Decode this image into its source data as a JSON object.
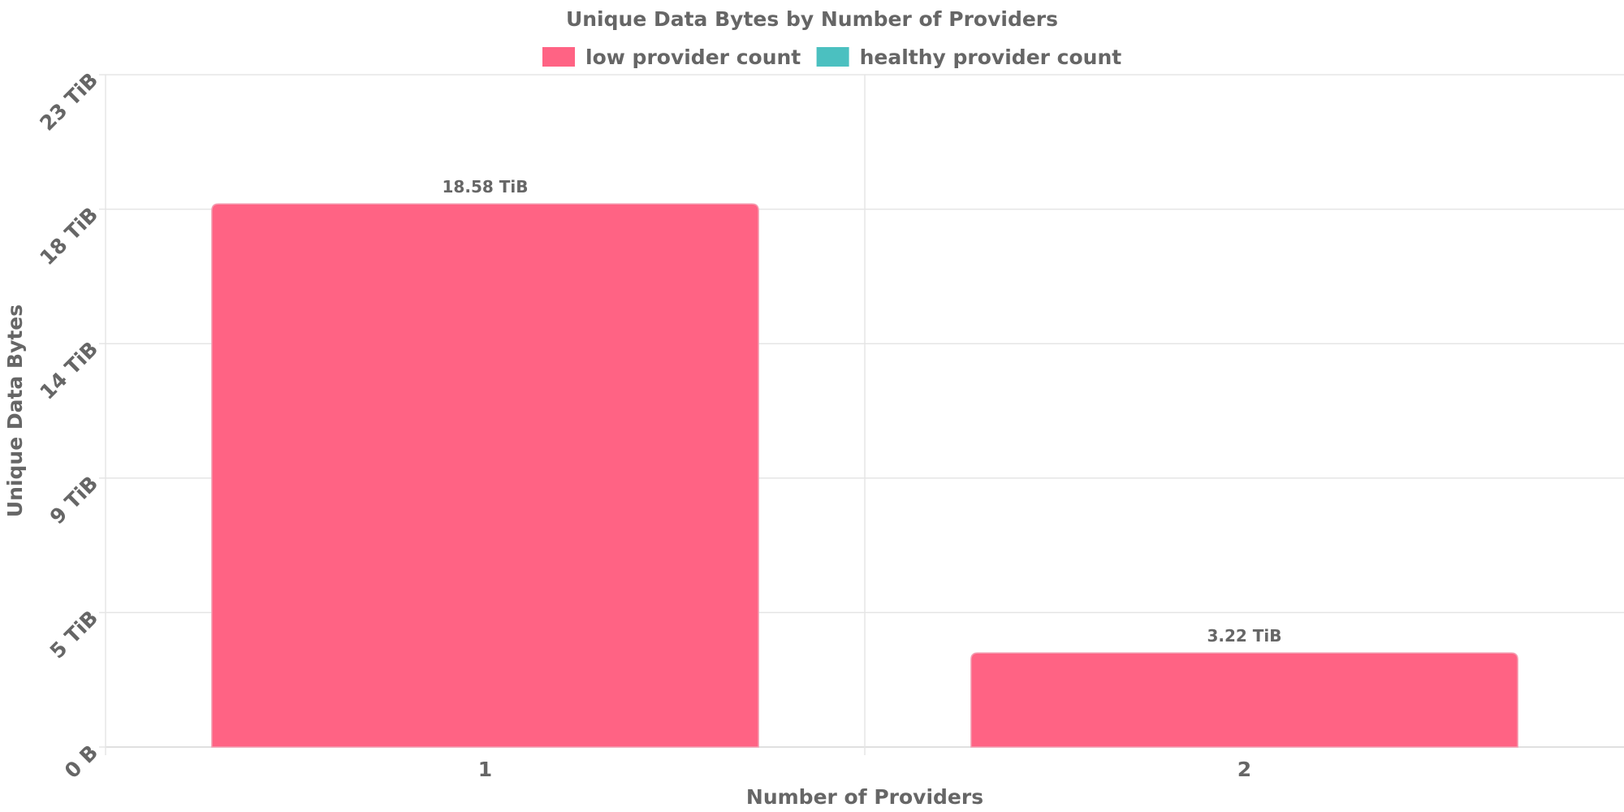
{
  "chart_data": {
    "type": "bar",
    "title": "Unique Data Bytes by Number of Providers",
    "xlabel": "Number of Providers",
    "ylabel": "Unique Data Bytes",
    "categories": [
      "1",
      "2"
    ],
    "series": [
      {
        "name": "low provider count",
        "color": "#ff6384",
        "values": [
          18.58,
          3.22
        ],
        "labels": [
          "18.58 TiB",
          "3.22 TiB"
        ]
      },
      {
        "name": "healthy provider count",
        "color": "#4bc0c0",
        "values": [
          0,
          0
        ],
        "labels": []
      }
    ],
    "y_unit": "TiB",
    "ylim": [
      0,
      23
    ],
    "y_ticks": [
      0,
      4.6,
      9.2,
      13.8,
      18.4,
      23
    ],
    "y_tick_labels": [
      "0 B",
      "5 TiB",
      "9 TiB",
      "14 TiB",
      "18 TiB",
      "23 TiB"
    ],
    "grid": true,
    "legend_position": "top"
  }
}
